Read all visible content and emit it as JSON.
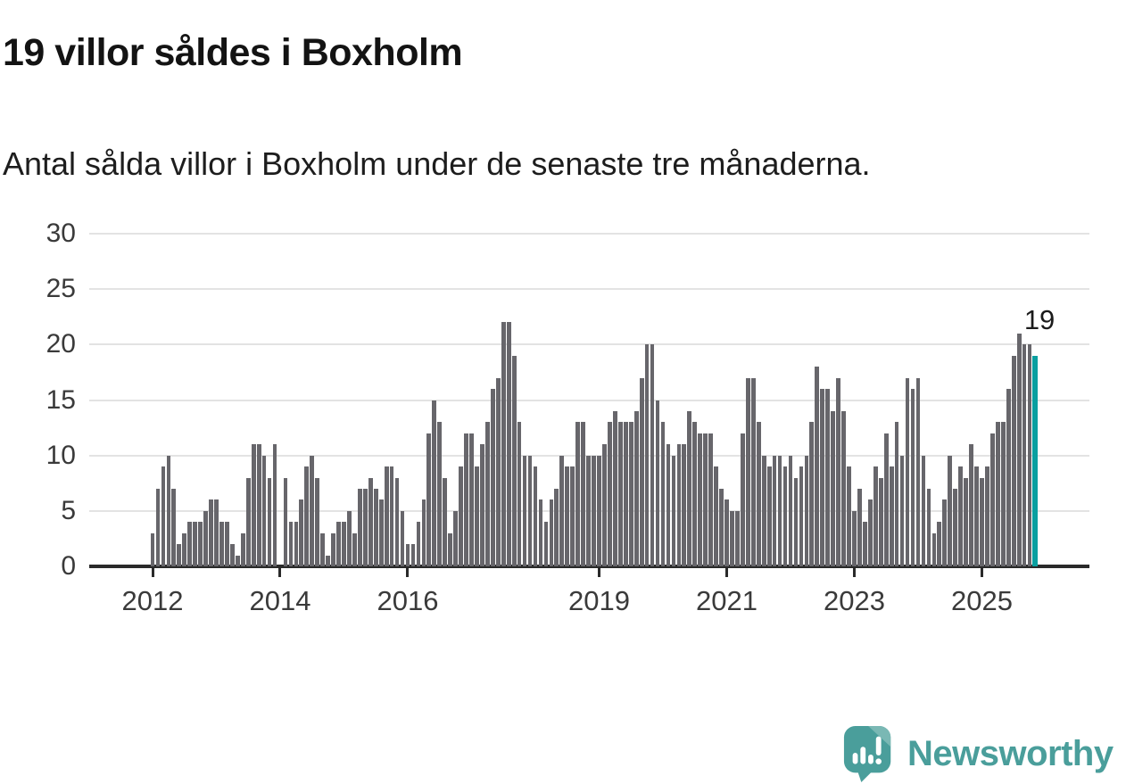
{
  "header": {
    "title": "19 villor såldes i Boxholm",
    "subtitle": "Antal sålda villor i Boxholm under de senaste tre månaderna."
  },
  "chart_data": {
    "type": "bar",
    "title": "19 villor såldes i Boxholm",
    "xlabel": "",
    "ylabel": "",
    "start_month": "2012-01",
    "frequency": "monthly",
    "values": [
      3,
      7,
      9,
      10,
      7,
      2,
      3,
      4,
      4,
      4,
      5,
      6,
      6,
      4,
      4,
      2,
      1,
      3,
      8,
      11,
      11,
      10,
      8,
      11,
      0,
      8,
      4,
      4,
      6,
      9,
      10,
      8,
      3,
      1,
      3,
      4,
      4,
      5,
      3,
      7,
      7,
      8,
      7,
      6,
      9,
      9,
      8,
      5,
      2,
      2,
      4,
      6,
      12,
      15,
      13,
      8,
      3,
      5,
      9,
      12,
      12,
      9,
      11,
      13,
      16,
      17,
      22,
      22,
      19,
      13,
      10,
      10,
      9,
      6,
      4,
      6,
      7,
      10,
      9,
      9,
      13,
      13,
      10,
      10,
      10,
      11,
      13,
      14,
      13,
      13,
      13,
      14,
      17,
      20,
      20,
      15,
      13,
      11,
      10,
      11,
      11,
      14,
      13,
      12,
      12,
      12,
      9,
      7,
      6,
      5,
      5,
      12,
      17,
      17,
      13,
      10,
      9,
      10,
      10,
      9,
      10,
      8,
      9,
      10,
      13,
      18,
      16,
      16,
      14,
      17,
      14,
      9,
      5,
      7,
      4,
      6,
      9,
      8,
      12,
      9,
      13,
      10,
      17,
      16,
      17,
      10,
      7,
      3,
      4,
      6,
      10,
      7,
      9,
      8,
      11,
      9,
      8,
      9,
      12,
      13,
      13,
      16,
      19,
      21,
      20,
      20,
      19
    ],
    "highlight_last_bar": true,
    "last_bar_value": 19,
    "y_ticks": [
      0,
      5,
      10,
      15,
      20,
      25,
      30
    ],
    "ylim": [
      0,
      30
    ],
    "x_ticks": [
      {
        "label": "2012",
        "month_index": 0
      },
      {
        "label": "2014",
        "month_index": 24
      },
      {
        "label": "2016",
        "month_index": 48
      },
      {
        "label": "2019",
        "month_index": 84
      },
      {
        "label": "2021",
        "month_index": 108
      },
      {
        "label": "2023",
        "month_index": 132
      },
      {
        "label": "2025",
        "month_index": 156
      }
    ],
    "grid": true,
    "legend": "none"
  },
  "annotation": {
    "label": "19"
  },
  "branding": {
    "wordmark": "Newsworthy"
  },
  "colors": {
    "bar": "#67666b",
    "highlight": "#0a9fa0",
    "brand": "#4a9e9b",
    "brand_light": "#7ab8b4",
    "grid": "#e3e3e3",
    "baseline": "#2a2a2a"
  }
}
